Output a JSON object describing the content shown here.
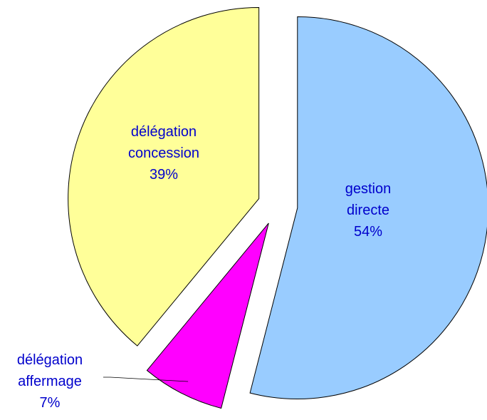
{
  "chart_data": {
    "type": "pie",
    "categories": [
      "gestion directe",
      "délégation affermage",
      "délégation concession"
    ],
    "values": [
      54,
      7,
      39
    ],
    "value_labels": [
      "54%",
      "7%",
      "39%"
    ],
    "colors": [
      "#99ccff",
      "#ff00ff",
      "#ffff99"
    ]
  }
}
